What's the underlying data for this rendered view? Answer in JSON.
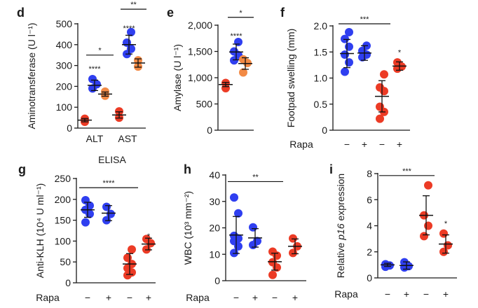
{
  "colors": {
    "blue": "#2f3ff0",
    "red": "#ec3b25",
    "orange": "#f28a45",
    "axis": "#1a1a1a"
  },
  "chart_data": [
    {
      "panel": "d",
      "type": "scatter",
      "ylabel": "Aminotransferase (U l⁻¹)",
      "ylim": [
        0,
        500
      ],
      "yticks": [
        0,
        100,
        200,
        300,
        400,
        500
      ],
      "categories": [
        "ALT",
        "AST"
      ],
      "groups": [
        {
          "category": "ALT",
          "color": "red",
          "points": [
            30,
            45
          ],
          "mean": 38,
          "sd": 8
        },
        {
          "category": "ALT",
          "color": "blue",
          "points": [
            190,
            210,
            235
          ],
          "mean": 205,
          "sd": 25
        },
        {
          "category": "ALT",
          "color": "orange",
          "points": [
            155,
            175
          ],
          "mean": 163,
          "sd": 10
        },
        {
          "category": "AST",
          "color": "red",
          "points": [
            50,
            80
          ],
          "mean": 63,
          "sd": 15
        },
        {
          "category": "AST",
          "color": "blue",
          "points": [
            355,
            380,
            410,
            460
          ],
          "mean": 400,
          "sd": 45
        },
        {
          "category": "AST",
          "color": "orange",
          "points": [
            295,
            325
          ],
          "mean": 312,
          "sd": 20
        }
      ],
      "brackets": [
        {
          "from": 1,
          "to": 2,
          "value": 350,
          "label": "*"
        },
        {
          "from": 4,
          "to": 5,
          "value": 570,
          "label": "**"
        }
      ],
      "stars": [
        {
          "group": 1,
          "value": 285,
          "label": "****"
        },
        {
          "group": 4,
          "value": 480,
          "label": "****"
        }
      ]
    },
    {
      "panel": "e",
      "type": "scatter",
      "ylabel": "Amylase (U l⁻¹)",
      "ylim": [
        0,
        2000
      ],
      "yticks": [
        "0",
        "500",
        "1,000",
        "1,500",
        "2,000"
      ],
      "ytick_values": [
        0,
        500,
        1000,
        1500,
        2000
      ],
      "groups": [
        {
          "color": "red",
          "points": [
            800,
            900
          ],
          "mean": 870,
          "sd": 40
        },
        {
          "color": "blue",
          "points": [
            1330,
            1430,
            1500,
            1680
          ],
          "mean": 1490,
          "sd": 150
        },
        {
          "color": "orange",
          "points": [
            1100,
            1280,
            1350
          ],
          "mean": 1270,
          "sd": 110
        }
      ],
      "brackets": [
        {
          "from": 1,
          "to": 2,
          "value": 2150,
          "label": "*"
        }
      ],
      "stars": [
        {
          "group": 1,
          "value": 1800,
          "label": "****"
        }
      ]
    },
    {
      "panel": "f",
      "type": "scatter",
      "ylabel": "Footpad swelling (mm)",
      "ylim": [
        0,
        2.0
      ],
      "yticks": [
        "0",
        "0.5",
        "1.0",
        "1.5",
        "2.0"
      ],
      "ytick_values": [
        0,
        0.5,
        1.0,
        1.5,
        2.0
      ],
      "rapa_label": "Rapa",
      "rapa": [
        "−",
        "+",
        "−",
        "+"
      ],
      "groups": [
        {
          "color": "blue",
          "points": [
            1.12,
            1.3,
            1.45,
            1.6,
            1.75,
            1.88
          ],
          "mean": 1.47,
          "sd": 0.27
        },
        {
          "color": "blue",
          "points": [
            1.4,
            1.45,
            1.52,
            1.62
          ],
          "mean": 1.48,
          "sd": 0.14
        },
        {
          "color": "red",
          "points": [
            0.22,
            0.35,
            0.45,
            0.75,
            0.82,
            1.07
          ],
          "mean": 0.65,
          "sd": 0.3
        },
        {
          "color": "red",
          "points": [
            1.18,
            1.22,
            1.3
          ],
          "mean": 1.23,
          "sd": 0.08
        }
      ],
      "brackets": [
        {
          "from": 0,
          "to": 2,
          "value": 2.04,
          "label": "***"
        }
      ],
      "stars": [
        {
          "group": 3,
          "value": 1.5,
          "label": "*"
        }
      ]
    },
    {
      "panel": "g",
      "type": "scatter",
      "title": "ELISA",
      "ylabel": "Anti-KLH (10⁴ U ml⁻¹)",
      "ylim": [
        0,
        250
      ],
      "yticks": [
        "0",
        "50",
        "100",
        "150",
        "200",
        "250"
      ],
      "ytick_values": [
        0,
        50,
        100,
        150,
        200,
        250
      ],
      "rapa_label": "Rapa",
      "rapa": [
        "−",
        "+",
        "−",
        "+"
      ],
      "groups": [
        {
          "color": "blue",
          "points": [
            145,
            165,
            175,
            185,
            198
          ],
          "mean": 175,
          "sd": 18
        },
        {
          "color": "blue",
          "points": [
            150,
            165,
            182
          ],
          "mean": 167,
          "sd": 18
        },
        {
          "color": "red",
          "points": [
            18,
            25,
            35,
            45,
            60,
            80
          ],
          "mean": 45,
          "sd": 25
        },
        {
          "color": "red",
          "points": [
            80,
            95,
            105
          ],
          "mean": 93,
          "sd": 14
        }
      ],
      "brackets": [
        {
          "from": 0,
          "to": 2,
          "value": 228,
          "label": "****"
        }
      ],
      "stars": [
        {
          "group": 3,
          "value": 112,
          "label": "*"
        }
      ]
    },
    {
      "panel": "h",
      "type": "scatter",
      "ylabel": "WBC (10³ mm⁻²)",
      "ylim": [
        0,
        40
      ],
      "yticks": [
        "0",
        "10",
        "20",
        "30",
        "40"
      ],
      "ytick_values": [
        0,
        10,
        20,
        30,
        40
      ],
      "rapa_label": "Rapa",
      "rapa": [
        "−",
        "+",
        "−",
        "+"
      ],
      "groups": [
        {
          "color": "blue",
          "points": [
            10.5,
            13,
            15,
            16,
            17,
            25.5,
            31.5
          ],
          "mean": 17.3,
          "sd": 7
        },
        {
          "color": "blue",
          "points": [
            13.5,
            15,
            20.2
          ],
          "mean": 16.2,
          "sd": 3.5
        },
        {
          "color": "red",
          "points": [
            2.2,
            5,
            7,
            9.5,
            11
          ],
          "mean": 7.2,
          "sd": 3.2
        },
        {
          "color": "red",
          "points": [
            10.5,
            13,
            16
          ],
          "mean": 13,
          "sd": 2.8
        }
      ],
      "brackets": [
        {
          "from": 0,
          "to": 2,
          "value": 37.5,
          "label": "**"
        }
      ],
      "stars": []
    },
    {
      "panel": "i",
      "type": "scatter",
      "ylabel_prefix": "Relative ",
      "ylabel_gene": "p16",
      "ylabel_suffix": " expression",
      "ylim": [
        0,
        8
      ],
      "yticks": [
        "0",
        "2",
        "4",
        "6",
        "8"
      ],
      "ytick_values": [
        0,
        2,
        4,
        6,
        8
      ],
      "rapa_label": "Rapa",
      "rapa": [
        "−",
        "+",
        "−",
        "+"
      ],
      "groups": [
        {
          "color": "blue",
          "points": [
            0.85,
            0.95,
            1.05
          ],
          "mean": 1.0,
          "sd": 0.12
        },
        {
          "color": "blue",
          "points": [
            0.8,
            0.9,
            1.2
          ],
          "mean": 0.95,
          "sd": 0.28
        },
        {
          "color": "red",
          "points": [
            3.2,
            4.0,
            4.8,
            7.1
          ],
          "mean": 4.8,
          "sd": 1.5
        },
        {
          "color": "red",
          "points": [
            2.0,
            2.5,
            3.4
          ],
          "mean": 2.6,
          "sd": 0.7
        }
      ],
      "brackets": [
        {
          "from": 0,
          "to": 2,
          "value": 7.85,
          "label": "***"
        }
      ],
      "stars": [
        {
          "group": 3,
          "value": 4.2,
          "label": "*"
        }
      ]
    }
  ]
}
